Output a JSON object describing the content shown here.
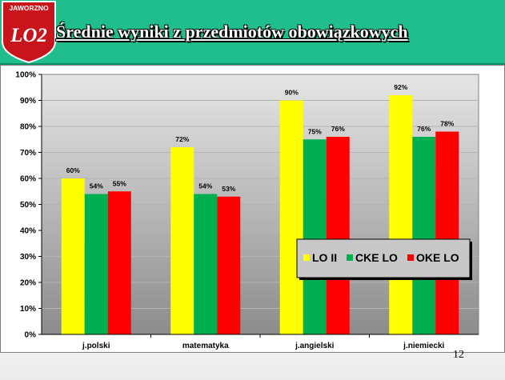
{
  "header": {
    "logo_text": "JAWORZNO",
    "logo_mark": "LO2",
    "title": "Średnie wyniki z przedmiotów obowiązkowych"
  },
  "page_number": "12",
  "colors": {
    "header": "#1fbe8c",
    "plot_bg_top": "#e6e6e6",
    "plot_bg_bottom": "#8c8c8c",
    "lo_ii": "#ffff00",
    "cke_lo": "#00b050",
    "oke_lo": "#ff0000"
  },
  "chart_data": {
    "type": "bar",
    "title": "",
    "xlabel": "",
    "ylabel": "",
    "categories": [
      "j.polski",
      "matematyka",
      "j.angielski",
      "j.niemiecki"
    ],
    "series": [
      {
        "name": "LO II",
        "color": "#ffff00",
        "values": [
          60,
          72,
          90,
          92
        ],
        "labels": [
          "60%",
          "72%",
          "90%",
          "92%"
        ]
      },
      {
        "name": "CKE LO",
        "color": "#00b050",
        "values": [
          54,
          54,
          75,
          76
        ],
        "labels": [
          "54%",
          "54%",
          "75%",
          "76%"
        ]
      },
      {
        "name": "OKE LO",
        "color": "#ff0000",
        "values": [
          55,
          53,
          76,
          78
        ],
        "labels": [
          "55%",
          "53%",
          "76%",
          "78%"
        ]
      }
    ],
    "ylim": [
      0,
      100
    ],
    "y_ticks": [
      "0%",
      "10%",
      "20%",
      "30%",
      "40%",
      "50%",
      "60%",
      "70%",
      "80%",
      "90%",
      "100%"
    ],
    "grid": true,
    "legend_position": "center-right"
  }
}
